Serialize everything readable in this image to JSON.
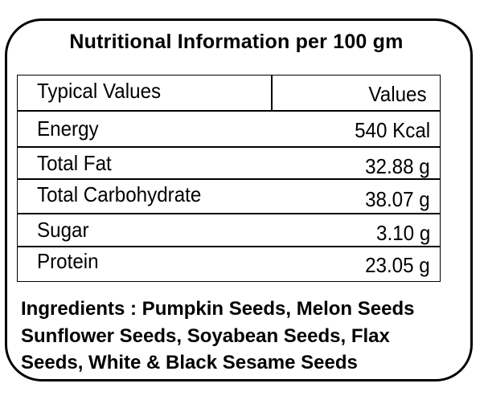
{
  "title": "Nutritional Information per 100 gm",
  "table": {
    "header": {
      "name": "Typical Values",
      "value": "Values"
    },
    "rows": [
      {
        "name": "Energy",
        "value": "540 Kcal"
      },
      {
        "name": "Total Fat",
        "value": "32.88 g"
      },
      {
        "name": "Total Carbohydrate",
        "value": "38.07 g"
      },
      {
        "name": "Sugar",
        "value": "3.10 g"
      },
      {
        "name": "Protein",
        "value": "23.05 g"
      }
    ]
  },
  "ingredients": {
    "lines": [
      "Ingredients : Pumpkin Seeds, Melon Seeds",
      "Sunflower Seeds, Soyabean Seeds, Flax",
      "Seeds, White & Black Sesame Seeds"
    ]
  }
}
